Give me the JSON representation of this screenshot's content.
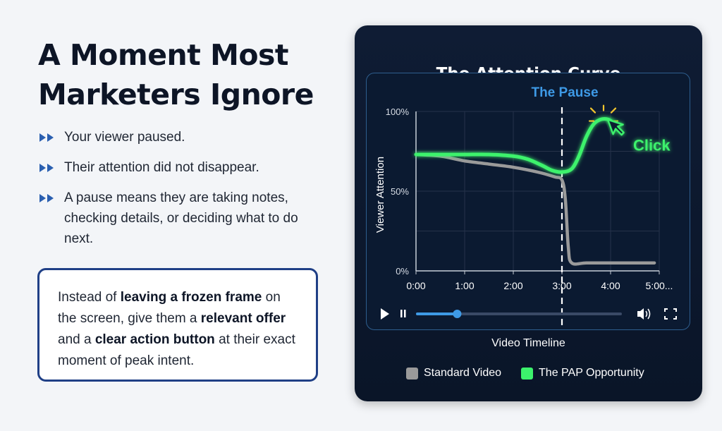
{
  "headline": {
    "line1": "A Moment Most",
    "line2": "Marketers Ignore"
  },
  "bullets": [
    "Your viewer paused.",
    "Their attention did not disappear.",
    "A pause means they are taking notes, checking details, or deciding what to do next."
  ],
  "callout": {
    "parts": [
      {
        "text": "Instead of ",
        "bold": false
      },
      {
        "text": "leaving a frozen frame",
        "bold": true
      },
      {
        "text": " on the screen, give them a ",
        "bold": false
      },
      {
        "text": "relevant offer",
        "bold": true
      },
      {
        "text": " and a ",
        "bold": false
      },
      {
        "text": "clear action button",
        "bold": true
      },
      {
        "text": " at their exact moment of peak intent.",
        "bold": false
      }
    ]
  },
  "panel": {
    "title": "The Attention Curve"
  },
  "chart_data": {
    "type": "line",
    "ylabel": "Viewer Attention",
    "xlabel": "Video Timeline",
    "x_ticks": [
      "0:00",
      "1:00",
      "2:00",
      "3:00",
      "4:00",
      "5:00..."
    ],
    "y_ticks": [
      "0%",
      "50%",
      "100%"
    ],
    "xlim": [
      0,
      5
    ],
    "ylim": [
      0,
      100
    ],
    "grid": true,
    "legend_position": "bottom",
    "annotations": [
      {
        "text": "The Pause",
        "x": 3.0
      },
      {
        "text": "Click",
        "x": 4.0,
        "y": 94
      }
    ],
    "series": [
      {
        "name": "Standard Video",
        "color": "#9a9a9a",
        "points": [
          [
            0,
            73
          ],
          [
            0.5,
            72
          ],
          [
            1.0,
            69
          ],
          [
            1.5,
            67
          ],
          [
            2.0,
            65
          ],
          [
            2.5,
            62
          ],
          [
            2.85,
            59
          ],
          [
            3.0,
            57
          ],
          [
            3.07,
            45
          ],
          [
            3.13,
            15
          ],
          [
            3.2,
            5
          ],
          [
            3.5,
            5
          ],
          [
            4.0,
            5
          ],
          [
            4.5,
            5
          ],
          [
            4.9,
            5
          ]
        ]
      },
      {
        "name": "The PAP Opportunity",
        "color": "#3cf26c",
        "points": [
          [
            0,
            73
          ],
          [
            0.5,
            73
          ],
          [
            1.0,
            73
          ],
          [
            1.5,
            73
          ],
          [
            2.0,
            72
          ],
          [
            2.3,
            70
          ],
          [
            2.6,
            66
          ],
          [
            2.8,
            63
          ],
          [
            3.0,
            62
          ],
          [
            3.2,
            64
          ],
          [
            3.35,
            72
          ],
          [
            3.5,
            84
          ],
          [
            3.65,
            92
          ],
          [
            3.8,
            95
          ],
          [
            3.95,
            95
          ],
          [
            4.05,
            93
          ]
        ]
      }
    ]
  },
  "player": {
    "progress": 0.2
  },
  "colors": {
    "panel_bg": "#0f1c34",
    "grid": "#26334a",
    "pause_label": "#3e9ae6",
    "accent_green": "#3cf26c",
    "standard_gray": "#9a9a9a",
    "bullet_arrow": "#2a5fb0"
  },
  "icons": {
    "bullet": "double-play-arrow-icon",
    "play": "play-icon",
    "pause": "pause-icon",
    "volume": "volume-icon",
    "fullscreen": "fullscreen-icon",
    "cursor": "cursor-click-icon"
  }
}
